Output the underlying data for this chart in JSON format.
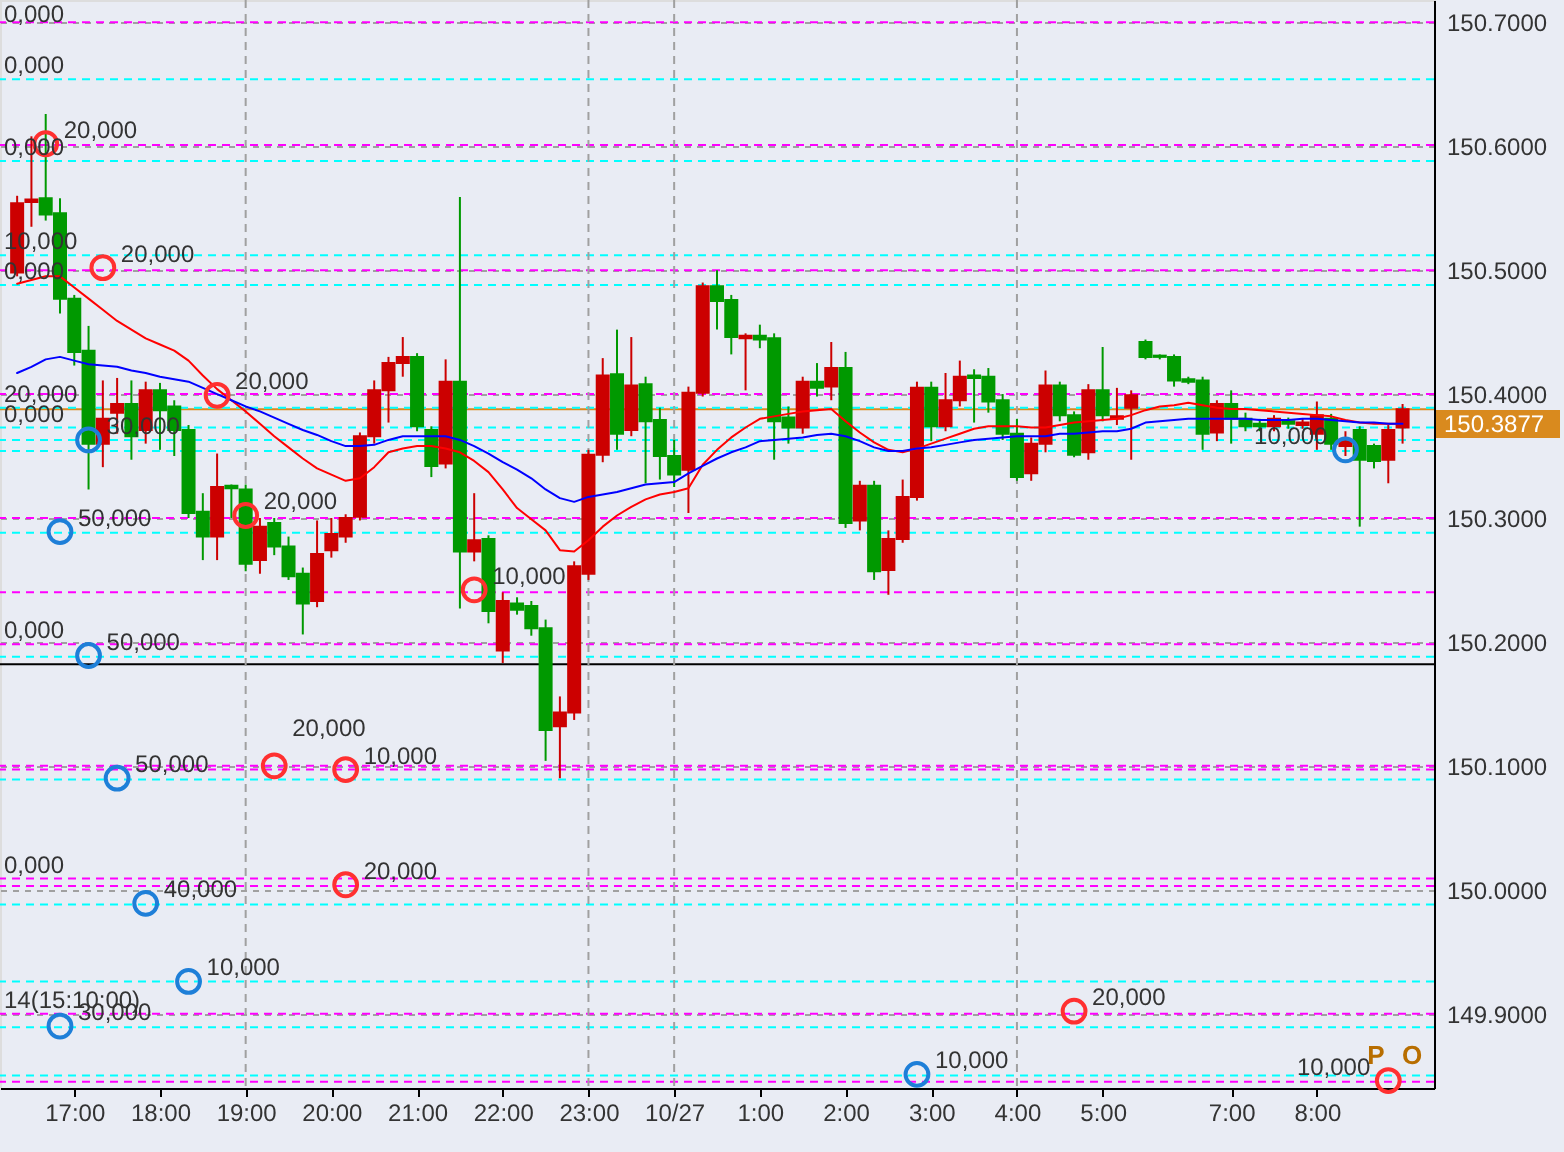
{
  "chart_data": {
    "type": "candlestick",
    "categories": [
      null,
      null,
      null,
      null,
      "17:00",
      null,
      null,
      null,
      null,
      null,
      "18:00",
      null,
      null,
      null,
      null,
      null,
      "19:00",
      null,
      null,
      null,
      null,
      null,
      "20:00",
      null,
      null,
      null,
      null,
      null,
      "21:00",
      null,
      null,
      null,
      null,
      null,
      "22:00",
      null,
      null,
      null,
      null,
      null,
      "23:00",
      null,
      null,
      null,
      null,
      null,
      "10/27",
      null,
      null,
      null,
      null,
      null,
      "1:00",
      null,
      null,
      null,
      null,
      null,
      "2:00",
      null,
      null,
      null,
      null,
      null,
      "3:00",
      null,
      null,
      null,
      null,
      null,
      "4:00",
      null,
      null,
      null,
      null,
      null,
      "5:00",
      null,
      null,
      null,
      null,
      null,
      null,
      null,
      null,
      "7:00",
      null,
      null,
      null,
      null,
      null,
      "8:00",
      null,
      null,
      null,
      null,
      null,
      null
    ],
    "ohlc": [
      [
        150.498,
        150.56,
        150.495,
        150.554
      ],
      [
        150.555,
        150.608,
        150.535,
        150.557
      ],
      [
        150.558,
        150.626,
        150.54,
        150.545
      ],
      [
        150.546,
        150.558,
        150.465,
        150.477
      ],
      [
        150.477,
        150.48,
        150.423,
        150.434
      ],
      [
        150.435,
        150.455,
        150.323,
        150.36
      ],
      [
        150.36,
        150.411,
        150.341,
        150.38
      ],
      [
        150.385,
        150.413,
        150.368,
        150.392
      ],
      [
        150.392,
        150.411,
        150.347,
        150.366
      ],
      [
        150.371,
        150.41,
        150.36,
        150.403
      ],
      [
        150.403,
        150.409,
        150.355,
        150.387
      ],
      [
        150.39,
        150.395,
        150.35,
        150.371
      ],
      [
        150.371,
        150.375,
        150.3,
        150.304
      ],
      [
        150.305,
        150.32,
        150.266,
        150.285
      ],
      [
        150.285,
        150.352,
        150.266,
        150.325
      ],
      [
        150.326,
        150.327,
        150.3,
        150.324
      ],
      [
        150.323,
        150.327,
        150.257,
        150.263
      ],
      [
        150.266,
        150.3,
        150.255,
        150.293
      ],
      [
        150.296,
        150.3,
        150.27,
        150.277
      ],
      [
        150.277,
        150.285,
        150.25,
        150.253
      ],
      [
        150.255,
        150.26,
        150.206,
        150.231
      ],
      [
        150.233,
        150.298,
        150.228,
        150.271
      ],
      [
        150.274,
        150.3,
        150.268,
        150.287
      ],
      [
        150.285,
        150.303,
        150.28,
        150.3
      ],
      [
        150.301,
        150.369,
        150.298,
        150.366
      ],
      [
        150.366,
        150.411,
        150.36,
        150.403
      ],
      [
        150.403,
        150.43,
        150.377,
        150.425
      ],
      [
        150.425,
        150.446,
        150.414,
        150.43
      ],
      [
        150.43,
        150.433,
        150.37,
        150.374
      ],
      [
        150.371,
        150.374,
        150.333,
        150.342
      ],
      [
        150.344,
        150.428,
        150.34,
        150.41
      ],
      [
        150.41,
        150.559,
        150.227,
        150.273
      ],
      [
        150.273,
        150.32,
        150.265,
        150.282
      ],
      [
        150.283,
        150.286,
        150.215,
        150.225
      ],
      [
        150.193,
        150.24,
        150.183,
        150.233
      ],
      [
        150.231,
        150.236,
        150.222,
        150.226
      ],
      [
        150.229,
        150.233,
        150.205,
        150.211
      ],
      [
        150.211,
        150.218,
        150.104,
        150.129
      ],
      [
        150.132,
        150.156,
        150.09,
        150.143
      ],
      [
        150.143,
        150.265,
        150.137,
        150.261
      ],
      [
        150.255,
        150.355,
        150.25,
        150.351
      ],
      [
        150.351,
        150.429,
        150.345,
        150.415
      ],
      [
        150.416,
        150.452,
        150.355,
        150.368
      ],
      [
        150.371,
        150.446,
        150.366,
        150.407
      ],
      [
        150.408,
        150.414,
        150.328,
        150.378
      ],
      [
        150.379,
        150.389,
        150.331,
        150.35
      ],
      [
        150.35,
        150.363,
        150.325,
        150.335
      ],
      [
        150.339,
        150.406,
        150.304,
        150.401
      ],
      [
        150.401,
        150.49,
        150.398,
        150.487
      ],
      [
        150.487,
        150.5,
        150.452,
        150.475
      ],
      [
        150.476,
        150.48,
        150.432,
        150.446
      ],
      [
        150.445,
        150.449,
        150.403,
        150.447
      ],
      [
        150.447,
        150.456,
        150.437,
        150.444
      ],
      [
        150.445,
        150.449,
        150.347,
        150.378
      ],
      [
        150.381,
        150.39,
        150.36,
        150.373
      ],
      [
        150.373,
        150.414,
        150.368,
        150.41
      ],
      [
        150.41,
        150.425,
        150.398,
        150.405
      ],
      [
        150.406,
        150.442,
        150.395,
        150.421
      ],
      [
        150.421,
        150.434,
        150.292,
        150.296
      ],
      [
        150.298,
        150.33,
        150.29,
        150.326
      ],
      [
        150.326,
        150.33,
        150.25,
        150.257
      ],
      [
        150.258,
        150.29,
        150.238,
        150.283
      ],
      [
        150.283,
        150.331,
        150.28,
        150.317
      ],
      [
        150.317,
        150.41,
        150.314,
        150.405
      ],
      [
        150.405,
        150.41,
        150.362,
        150.374
      ],
      [
        150.374,
        150.417,
        150.37,
        150.395
      ],
      [
        150.395,
        150.427,
        150.39,
        150.414
      ],
      [
        150.415,
        150.42,
        150.377,
        150.413
      ],
      [
        150.414,
        150.421,
        150.385,
        150.394
      ],
      [
        150.395,
        150.4,
        150.363,
        150.368
      ],
      [
        150.368,
        150.38,
        150.33,
        150.333
      ],
      [
        150.336,
        150.365,
        150.33,
        150.36
      ],
      [
        150.36,
        150.419,
        150.353,
        150.407
      ],
      [
        150.407,
        150.41,
        150.378,
        150.383
      ],
      [
        150.383,
        150.386,
        150.349,
        150.351
      ],
      [
        150.353,
        150.408,
        150.347,
        150.403
      ],
      [
        150.403,
        150.438,
        150.378,
        150.383
      ],
      [
        150.38,
        150.405,
        150.375,
        150.382
      ],
      [
        150.389,
        150.403,
        150.347,
        150.399
      ],
      [
        150.442,
        150.444,
        150.428,
        150.43
      ],
      [
        150.431,
        150.432,
        150.428,
        150.43
      ],
      [
        150.43,
        150.432,
        150.406,
        150.411
      ],
      [
        150.412,
        150.414,
        150.408,
        150.41
      ],
      [
        150.411,
        150.414,
        150.355,
        150.368
      ],
      [
        150.369,
        150.395,
        150.362,
        150.392
      ],
      [
        150.392,
        150.403,
        150.36,
        150.38
      ],
      [
        150.38,
        150.385,
        150.37,
        150.374
      ],
      [
        150.376,
        150.38,
        150.37,
        150.374
      ],
      [
        150.374,
        150.383,
        150.37,
        150.38
      ],
      [
        150.378,
        150.381,
        150.372,
        150.376
      ],
      [
        150.375,
        150.38,
        150.372,
        150.377
      ],
      [
        150.368,
        150.394,
        150.355,
        150.383
      ],
      [
        150.38,
        150.384,
        150.355,
        150.36
      ],
      [
        150.358,
        150.37,
        150.35,
        150.363
      ],
      [
        150.371,
        150.374,
        150.293,
        150.347
      ],
      [
        150.358,
        150.36,
        150.34,
        150.346
      ],
      [
        150.347,
        150.375,
        150.328,
        150.371
      ],
      [
        150.373,
        150.392,
        150.36,
        150.3877
      ]
    ],
    "colors": [
      "#cc0000",
      "#cc0000",
      "#009900",
      "#009900",
      "#009900",
      "#009900",
      "#cc0000",
      "#cc0000",
      "#009900",
      "#cc0000",
      "#009900",
      "#009900",
      "#009900",
      "#009900",
      "#cc0000",
      "#009900",
      "#009900",
      "#cc0000",
      "#009900",
      "#009900",
      "#009900",
      "#cc0000",
      "#cc0000",
      "#cc0000",
      "#cc0000",
      "#cc0000",
      "#cc0000",
      "#cc0000",
      "#009900",
      "#009900",
      "#cc0000",
      "#009900",
      "#cc0000",
      "#009900",
      "#cc0000",
      "#009900",
      "#009900",
      "#009900",
      "#cc0000",
      "#cc0000",
      "#cc0000",
      "#cc0000",
      "#009900",
      "#cc0000",
      "#009900",
      "#009900",
      "#009900",
      "#cc0000",
      "#cc0000",
      "#009900",
      "#009900",
      "#cc0000",
      "#009900",
      "#009900",
      "#009900",
      "#cc0000",
      "#009900",
      "#cc0000",
      "#009900",
      "#cc0000",
      "#009900",
      "#cc0000",
      "#cc0000",
      "#cc0000",
      "#009900",
      "#cc0000",
      "#cc0000",
      "#009900",
      "#009900",
      "#009900",
      "#009900",
      "#cc0000",
      "#cc0000",
      "#009900",
      "#009900",
      "#cc0000",
      "#009900",
      "#cc0000",
      "#cc0000",
      "#009900",
      "#009900",
      "#009900",
      "#009900",
      "#009900",
      "#cc0000",
      "#009900",
      "#009900",
      "#009900",
      "#cc0000",
      "#009900",
      "#cc0000",
      "#cc0000",
      "#009900",
      "#cc0000",
      "#009900",
      "#009900",
      "#cc0000",
      "#cc0000"
    ],
    "series": [
      {
        "type": "line",
        "color": "#ff0000",
        "values": [
          150.489,
          150.492,
          150.495,
          150.495,
          150.486,
          150.477,
          150.468,
          150.459,
          150.452,
          150.445,
          150.44,
          150.435,
          150.427,
          150.415,
          150.404,
          150.395,
          150.386,
          150.376,
          150.366,
          150.357,
          150.348,
          150.34,
          150.335,
          150.33,
          150.332,
          150.341,
          150.353,
          150.356,
          150.358,
          150.358,
          150.356,
          150.353,
          150.346,
          150.337,
          150.323,
          150.308,
          150.299,
          150.29,
          150.274,
          150.273,
          150.282,
          150.293,
          150.302,
          150.309,
          150.315,
          150.319,
          150.321,
          150.324,
          150.343,
          150.355,
          150.365,
          150.373,
          150.38,
          150.382,
          150.384,
          150.386,
          150.387,
          150.388,
          150.378,
          150.369,
          150.361,
          150.355,
          150.353,
          150.356,
          150.36,
          150.364,
          150.368,
          150.372,
          150.374,
          150.374,
          150.374,
          150.373,
          150.373,
          150.375,
          150.377,
          150.378,
          150.379,
          150.38,
          150.383,
          150.387,
          150.39,
          150.391,
          150.393,
          150.391,
          150.389,
          150.388,
          150.388,
          150.387,
          150.386,
          150.385,
          150.384,
          150.383,
          150.382,
          150.379,
          150.377,
          150.376,
          150.376,
          150.376
        ]
      },
      {
        "type": "line",
        "color": "#0000ff",
        "values": [
          150.417,
          150.422,
          150.428,
          150.43,
          150.427,
          150.424,
          150.423,
          150.422,
          150.419,
          150.417,
          150.414,
          150.412,
          150.41,
          150.405,
          150.4,
          150.395,
          150.39,
          150.386,
          150.381,
          150.376,
          150.371,
          150.367,
          150.362,
          150.358,
          150.358,
          150.359,
          150.363,
          150.366,
          150.366,
          150.366,
          150.366,
          150.363,
          150.358,
          150.352,
          150.345,
          150.339,
          150.332,
          150.323,
          150.316,
          150.313,
          150.317,
          150.319,
          150.321,
          150.324,
          150.327,
          150.328,
          150.329,
          150.336,
          150.342,
          150.348,
          150.353,
          150.357,
          150.362,
          150.363,
          150.364,
          150.365,
          150.367,
          150.368,
          150.366,
          150.362,
          150.357,
          150.354,
          150.354,
          150.356,
          150.357,
          150.359,
          150.361,
          150.363,
          150.364,
          150.365,
          150.366,
          150.366,
          150.366,
          150.368,
          150.368,
          150.369,
          150.37,
          150.37,
          150.372,
          150.377,
          150.378,
          150.379,
          150.38,
          150.38,
          150.38,
          150.38,
          150.38,
          150.379,
          150.379,
          150.379,
          150.38,
          150.38,
          150.379,
          150.378,
          150.377,
          150.377,
          150.376,
          150.376
        ]
      },
      {
        "type": "scatter",
        "name": "20,000",
        "marker": "circle",
        "color": "#ff3030",
        "values": [
          null,
          null,
          150.602,
          null,
          null,
          null,
          150.502,
          null,
          null,
          null,
          null,
          null,
          null,
          null,
          150.399,
          null,
          150.302,
          null,
          150.1,
          null,
          null,
          null,
          null,
          150.004,
          null,
          null,
          null,
          null,
          null,
          null,
          null,
          null,
          null,
          null,
          null,
          null,
          null,
          null,
          null,
          null,
          null,
          null,
          null,
          null,
          null,
          null,
          null,
          null,
          null,
          null,
          null,
          null,
          null,
          null,
          null,
          null,
          null,
          null,
          null,
          null,
          null,
          null,
          null,
          null,
          null,
          null,
          null,
          null,
          null,
          null,
          null,
          null,
          null,
          null,
          149.902,
          null,
          null,
          null,
          null,
          null,
          null,
          null,
          null,
          null,
          null,
          null,
          null,
          null,
          null,
          null,
          null,
          null,
          null,
          null,
          null,
          null,
          null,
          null
        ]
      },
      {
        "type": "scatter",
        "name": "10,000",
        "marker": "circle",
        "color": "#ff3030",
        "values": [
          null,
          null,
          null,
          null,
          null,
          null,
          null,
          null,
          null,
          null,
          null,
          null,
          null,
          null,
          null,
          null,
          null,
          null,
          null,
          null,
          null,
          null,
          null,
          150.097,
          null,
          null,
          null,
          null,
          null,
          null,
          null,
          null,
          150.242,
          null,
          null,
          null,
          null,
          null,
          null,
          null,
          null,
          null,
          null,
          null,
          null,
          null,
          null,
          null,
          null,
          null,
          null,
          null,
          null,
          null,
          null,
          null,
          null,
          null,
          null,
          null,
          null,
          null,
          null,
          null,
          null,
          null,
          null,
          null,
          null,
          null,
          null,
          null,
          null,
          null,
          null,
          null,
          null,
          null,
          null,
          null,
          null,
          null,
          null,
          null,
          null,
          null,
          null,
          null,
          null,
          null,
          null,
          null,
          null,
          null,
          null,
          null,
          149.846,
          null
        ]
      },
      {
        "type": "scatter",
        "name": "50,000",
        "marker": "circle",
        "color": "#1e7fd8",
        "values": [
          null,
          null,
          null,
          150.289,
          null,
          150.189,
          null,
          150.09,
          null,
          null,
          null,
          null,
          null,
          null,
          null,
          null,
          null,
          null,
          null,
          null,
          null,
          null,
          null,
          null,
          null,
          null,
          null,
          null,
          null,
          null,
          null,
          null,
          null,
          null,
          null,
          null,
          null,
          null,
          null,
          null,
          null,
          null,
          null,
          null,
          null,
          null,
          null,
          null,
          null,
          null,
          null,
          null,
          null,
          null,
          null,
          null,
          null,
          null,
          null,
          null,
          null,
          null,
          null,
          null,
          null,
          null,
          null,
          null,
          null,
          null,
          null,
          null,
          null,
          null,
          null,
          null,
          null,
          null,
          null,
          null,
          null,
          null,
          null,
          null,
          null,
          null,
          null,
          null,
          null,
          null,
          null,
          null,
          null,
          null,
          null,
          null,
          null,
          null
        ]
      },
      {
        "type": "scatter",
        "name": "30,000",
        "marker": "circle",
        "color": "#1e7fd8",
        "values": [
          null,
          null,
          null,
          149.89,
          null,
          150.363,
          null,
          null,
          null,
          null,
          null,
          null,
          null,
          null,
          null,
          null,
          null,
          null,
          null,
          null,
          null,
          null,
          null,
          null,
          null,
          null,
          null,
          null,
          null,
          null,
          null,
          null,
          null,
          null,
          null,
          null,
          null,
          null,
          null,
          null,
          null,
          null,
          null,
          null,
          null,
          null,
          null,
          null,
          null,
          null,
          null,
          null,
          null,
          null,
          null,
          null,
          null,
          null,
          null,
          null,
          null,
          null,
          null,
          null,
          null,
          null,
          null,
          null,
          null,
          null,
          null,
          null,
          null,
          null,
          null,
          null,
          null,
          null,
          null,
          null,
          null,
          null,
          null,
          null,
          null,
          null,
          null,
          null,
          null,
          null,
          null,
          null,
          null,
          null,
          null,
          null,
          null,
          null
        ]
      },
      {
        "type": "scatter",
        "name": "40,000",
        "marker": "circle",
        "color": "#1e7fd8",
        "values": [
          null,
          null,
          null,
          null,
          null,
          null,
          null,
          null,
          null,
          149.989,
          null,
          null,
          null,
          null,
          null,
          null,
          null,
          null,
          null,
          null,
          null,
          null,
          null,
          null,
          null,
          null,
          null,
          null,
          null,
          null,
          null,
          null,
          null,
          null,
          null,
          null,
          null,
          null,
          null,
          null,
          null,
          null,
          null,
          null,
          null,
          null,
          null,
          null,
          null,
          null,
          null,
          null,
          null,
          null,
          null,
          null,
          null,
          null,
          null,
          null,
          null,
          null,
          null,
          null,
          null,
          null,
          null,
          null,
          null,
          null,
          null,
          null,
          null,
          null,
          null,
          null,
          null,
          null,
          null,
          null,
          null,
          null,
          null,
          null,
          null,
          null,
          null,
          null,
          null,
          null,
          null,
          null,
          null,
          null,
          null,
          null,
          null,
          null
        ]
      },
      {
        "type": "scatter",
        "name": "10,000",
        "marker": "circle",
        "color": "#1e7fd8",
        "values": [
          null,
          null,
          null,
          null,
          null,
          null,
          null,
          null,
          null,
          null,
          null,
          null,
          149.926,
          null,
          null,
          null,
          null,
          null,
          null,
          null,
          null,
          null,
          null,
          null,
          null,
          null,
          null,
          null,
          null,
          null,
          null,
          null,
          null,
          null,
          null,
          null,
          null,
          null,
          null,
          null,
          null,
          null,
          null,
          null,
          null,
          null,
          null,
          null,
          null,
          null,
          null,
          null,
          null,
          null,
          null,
          null,
          null,
          null,
          null,
          null,
          null,
          null,
          null,
          149.851,
          null,
          null,
          null,
          null,
          null,
          null,
          null,
          null,
          null,
          null,
          null,
          null,
          null,
          null,
          null,
          null,
          null,
          null,
          null,
          null,
          null,
          null,
          null,
          null,
          null,
          null,
          null,
          null,
          null,
          150.355,
          null,
          null,
          null,
          null
        ]
      }
    ],
    "ylim": [
      149.84,
      150.718
    ],
    "yticks": [
      {
        "value": 149.9,
        "label": "149.9000"
      },
      {
        "value": 150.0,
        "label": "150.0000"
      },
      {
        "value": 150.1,
        "label": "150.1000"
      },
      {
        "value": 150.2,
        "label": "150.2000"
      },
      {
        "value": 150.3,
        "label": "150.3000"
      },
      {
        "value": 150.4,
        "label": "150.4000"
      },
      {
        "value": 150.5,
        "label": "150.5000"
      },
      {
        "value": 150.6,
        "label": "150.6000"
      },
      {
        "value": 150.7,
        "label": "150.7000"
      }
    ],
    "grid": "y",
    "ref_lines": [
      {
        "axis": "x",
        "value": "19:00",
        "color": "#a0a0a0",
        "line_style": "dashed"
      },
      {
        "axis": "x",
        "value": "23:00",
        "color": "#a0a0a0",
        "line_style": "dashed"
      },
      {
        "axis": "x",
        "value": "10/27",
        "color": "#a0a0a0",
        "line_style": "dashed"
      },
      {
        "axis": "x",
        "value": "4:00",
        "color": "#a0a0a0",
        "line_style": "dashed"
      },
      {
        "axis": "y",
        "value": 150.7,
        "color": "#ff00ff",
        "line_style": "dashed"
      },
      {
        "axis": "y",
        "value": 150.601,
        "color": "#ff00ff",
        "line_style": "dashed"
      },
      {
        "axis": "y",
        "value": 150.5,
        "color": "#ff00ff",
        "line_style": "dashed"
      },
      {
        "axis": "y",
        "value": 150.4,
        "color": "#ff00ff",
        "line_style": "dashed"
      },
      {
        "axis": "y",
        "value": 150.3,
        "color": "#ff00ff",
        "line_style": "dashed"
      },
      {
        "axis": "y",
        "value": 150.24,
        "color": "#ff00ff",
        "line_style": "dashed"
      },
      {
        "axis": "y",
        "value": 150.198,
        "color": "#ff00ff",
        "line_style": "dashed"
      },
      {
        "axis": "y",
        "value": 150.1,
        "color": "#ff00ff",
        "line_style": "dashed"
      },
      {
        "axis": "y",
        "value": 150.097,
        "color": "#ff00ff",
        "line_style": "dashed"
      },
      {
        "axis": "y",
        "value": 150.009,
        "color": "#ff00ff",
        "line_style": "dashed"
      },
      {
        "axis": "y",
        "value": 150.003,
        "color": "#ff00ff",
        "line_style": "dashed"
      },
      {
        "axis": "y",
        "value": 149.9,
        "color": "#ff00ff",
        "line_style": "dashed"
      },
      {
        "axis": "y",
        "value": 149.845,
        "color": "#ff00ff",
        "line_style": "dashed"
      },
      {
        "axis": "y",
        "value": 150.654,
        "color": "#00ffff",
        "line_style": "dashed"
      },
      {
        "axis": "y",
        "value": 150.588,
        "color": "#00ffff",
        "line_style": "dashed"
      },
      {
        "axis": "y",
        "value": 150.512,
        "color": "#00ffff",
        "line_style": "dashed"
      },
      {
        "axis": "y",
        "value": 150.488,
        "color": "#00ffff",
        "line_style": "dashed"
      },
      {
        "axis": "y",
        "value": 150.389,
        "color": "#00ffff",
        "line_style": "dashed"
      },
      {
        "axis": "y",
        "value": 150.373,
        "color": "#00ffff",
        "line_style": "dashed"
      },
      {
        "axis": "y",
        "value": 150.363,
        "color": "#00ffff",
        "line_style": "dashed"
      },
      {
        "axis": "y",
        "value": 150.354,
        "color": "#00ffff",
        "line_style": "dashed"
      },
      {
        "axis": "y",
        "value": 150.288,
        "color": "#00ffff",
        "line_style": "dashed"
      },
      {
        "axis": "y",
        "value": 150.188,
        "color": "#00ffff",
        "line_style": "dashed"
      },
      {
        "axis": "y",
        "value": 150.089,
        "color": "#00ffff",
        "line_style": "dashed"
      },
      {
        "axis": "y",
        "value": 149.988,
        "color": "#00ffff",
        "line_style": "dashed"
      },
      {
        "axis": "y",
        "value": 149.926,
        "color": "#00ffff",
        "line_style": "dashed"
      },
      {
        "axis": "y",
        "value": 149.889,
        "color": "#00ffff",
        "line_style": "dashed"
      },
      {
        "axis": "y",
        "value": 149.85,
        "color": "#00ffff",
        "line_style": "dashed"
      },
      {
        "axis": "y",
        "value": 150.182,
        "color": "#000000",
        "line_style": "solid"
      },
      {
        "axis": "y",
        "value": 150.3877,
        "label": "150.3877",
        "color": "#d98a1e",
        "line_style": "solid"
      }
    ],
    "annotations": [
      {
        "text": "0,000",
        "y": 150.7
      },
      {
        "text": "0,000",
        "y": 150.654
      },
      {
        "text": "0,000",
        "y": 150.588
      },
      {
        "text": "10,000",
        "y": 150.512
      },
      {
        "text": "0,000",
        "y": 150.488
      },
      {
        "text": "20,000",
        "y": 150.389
      },
      {
        "text": "0,000",
        "y": 150.373
      },
      {
        "text": "0,000",
        "y": 150.198
      },
      {
        "text": "0,000",
        "y": 150.009
      },
      {
        "text": "14(15:10:00)",
        "y": 149.9
      },
      "P",
      "O"
    ]
  }
}
